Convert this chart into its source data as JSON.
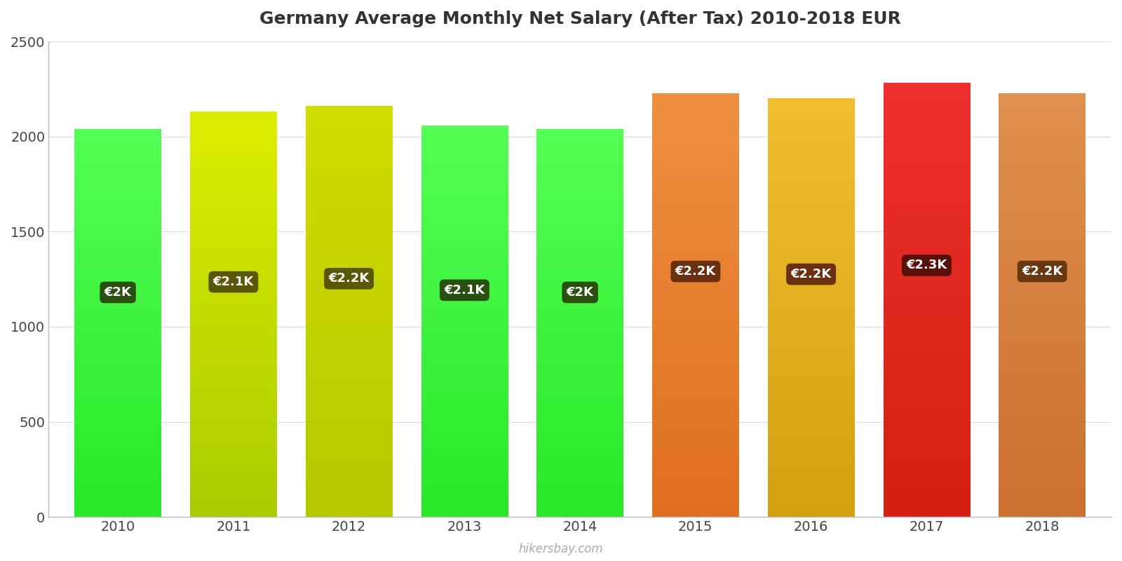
{
  "years": [
    2010,
    2011,
    2012,
    2013,
    2014,
    2015,
    2016,
    2017,
    2018
  ],
  "values": [
    2035,
    2130,
    2160,
    2055,
    2035,
    2225,
    2200,
    2280,
    2225
  ],
  "labels": [
    "€2K",
    "€2.1K",
    "€2.2K",
    "€2.1K",
    "€2K",
    "€2.2K",
    "€2.2K",
    "€2.3K",
    "€2.2K"
  ],
  "bar_colors_bottom": [
    "#28e828",
    "#aacc00",
    "#b8c800",
    "#28e828",
    "#28e828",
    "#e07020",
    "#d4a010",
    "#d42010",
    "#cc7030"
  ],
  "bar_colors_top": [
    "#55ff55",
    "#ddee00",
    "#d0dd00",
    "#55ff55",
    "#55ff55",
    "#ee9040",
    "#f0c030",
    "#ee3030",
    "#e09050"
  ],
  "label_bg_colors": [
    "#2a5010",
    "#5a5808",
    "#5a5808",
    "#2a5010",
    "#2a5010",
    "#6a3010",
    "#6a3010",
    "#5a1008",
    "#6a3810"
  ],
  "title": "Germany Average Monthly Net Salary (After Tax) 2010-2018 EUR",
  "ylim": [
    0,
    2500
  ],
  "yticks": [
    0,
    500,
    1000,
    1500,
    2000,
    2500
  ],
  "background_color": "#ffffff",
  "watermark": "hikersbay.com",
  "bar_width": 0.75
}
